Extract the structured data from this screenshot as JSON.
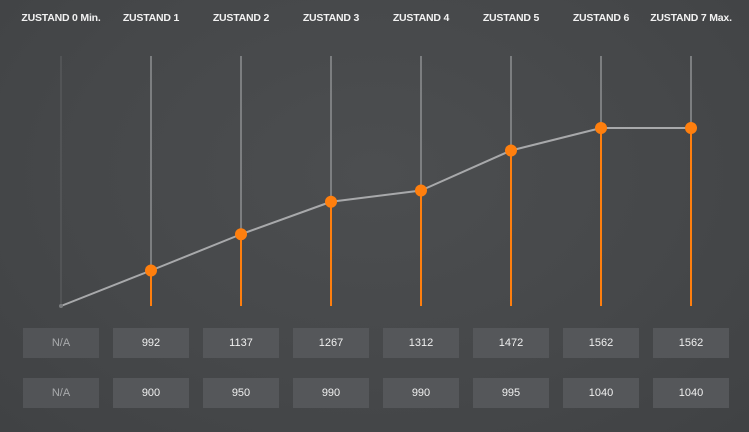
{
  "states": [
    "ZUSTAND 0 Min.",
    "ZUSTAND 1",
    "ZUSTAND 2",
    "ZUSTAND 3",
    "ZUSTAND 4",
    "ZUSTAND 5",
    "ZUSTAND 6",
    "ZUSTAND 7 Max."
  ],
  "row1": [
    "N/A",
    "992",
    "1137",
    "1267",
    "1312",
    "1472",
    "1562",
    "1562"
  ],
  "row2": [
    "N/A",
    "900",
    "950",
    "990",
    "990",
    "995",
    "1040",
    "1040"
  ],
  "colors": {
    "accent": "#ff7f0e",
    "line": "#a8a9ab",
    "track": "#8e9092",
    "background": "#46484a"
  },
  "chart_data": {
    "type": "line",
    "categories": [
      "ZUSTAND 0 Min.",
      "ZUSTAND 1",
      "ZUSTAND 2",
      "ZUSTAND 3",
      "ZUSTAND 4",
      "ZUSTAND 5",
      "ZUSTAND 6",
      "ZUSTAND 7 Max."
    ],
    "values": [
      null,
      992,
      1137,
      1267,
      1312,
      1472,
      1562,
      1562
    ],
    "ylim": [
      850,
      1850
    ]
  }
}
